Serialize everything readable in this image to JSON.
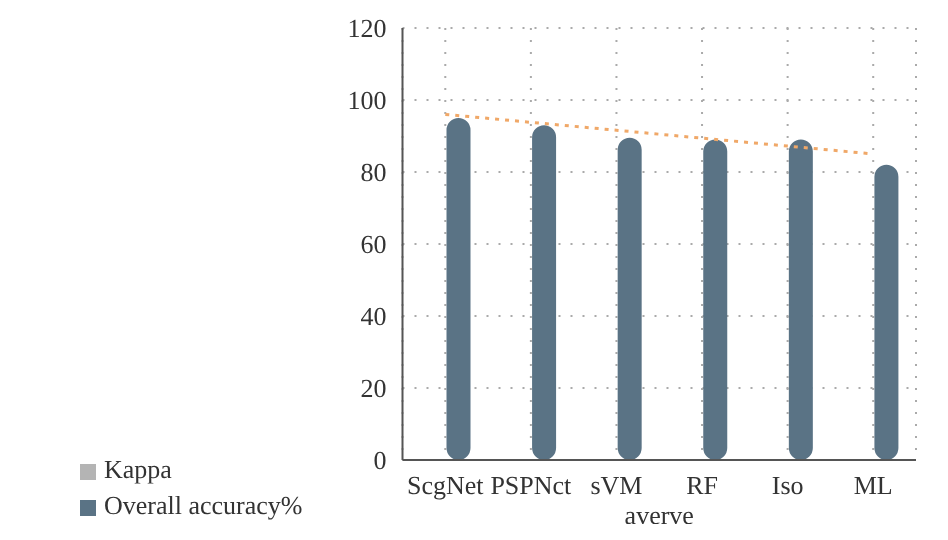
{
  "chart_data": {
    "type": "bar",
    "xlabel": "averve",
    "categories": [
      "ScgNet",
      "PSPNct",
      "sVM",
      "RF",
      "Iso",
      "ML"
    ],
    "series": [
      {
        "name": "Kappa",
        "color": "#b4b4b4",
        "values": [
          null,
          null,
          null,
          null,
          null,
          null
        ]
      },
      {
        "name": "Overall accuracy%",
        "color": "#5a7385",
        "values": [
          95,
          93,
          89.5,
          89,
          89,
          82
        ]
      },
      {
        "type": "line",
        "color": "#f0a868",
        "line_style": "dotted",
        "marker": "none",
        "values": [
          96,
          93.8,
          91.6,
          89.4,
          87.2,
          85
        ]
      }
    ],
    "ylim": [
      0,
      120
    ],
    "yticks": [
      0,
      20,
      40,
      60,
      80,
      100,
      120
    ],
    "grid": true,
    "legend": "bottom left"
  }
}
